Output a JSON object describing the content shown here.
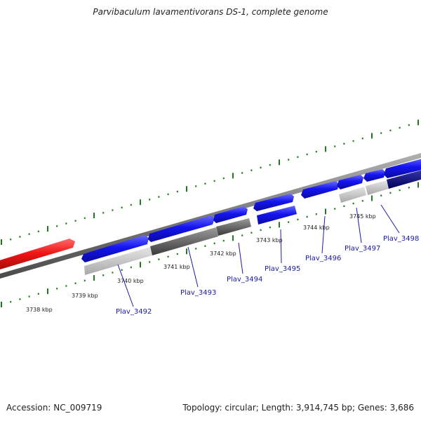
{
  "title": "Parvibaculum lavamentivorans DS-1, complete genome",
  "footer": {
    "accession": "Accession: NC_009719",
    "summary": "Topology: circular; Length: 3,914,745 bp; Genes: 3,686"
  },
  "colors": {
    "gene_forward": "#1010ee",
    "gene_highlight": "#ee1010",
    "gene_dark": "#00007a",
    "tick": "#1f7a1f",
    "backbone": "#8a8a8a",
    "gene_label": "#1a1aa8"
  },
  "kbp_labels": [
    "3738 kbp",
    "3739 kbp",
    "3740 kbp",
    "3741 kbp",
    "3742 kbp",
    "3743 kbp",
    "3744 kbp",
    "3745 kbp"
  ],
  "genes": [
    {
      "name": "Plav_3492"
    },
    {
      "name": "Plav_3493"
    },
    {
      "name": "Plav_3494"
    },
    {
      "name": "Plav_3495"
    },
    {
      "name": "Plav_3496"
    },
    {
      "name": "Plav_3497"
    },
    {
      "name": "Plav_3498"
    }
  ]
}
